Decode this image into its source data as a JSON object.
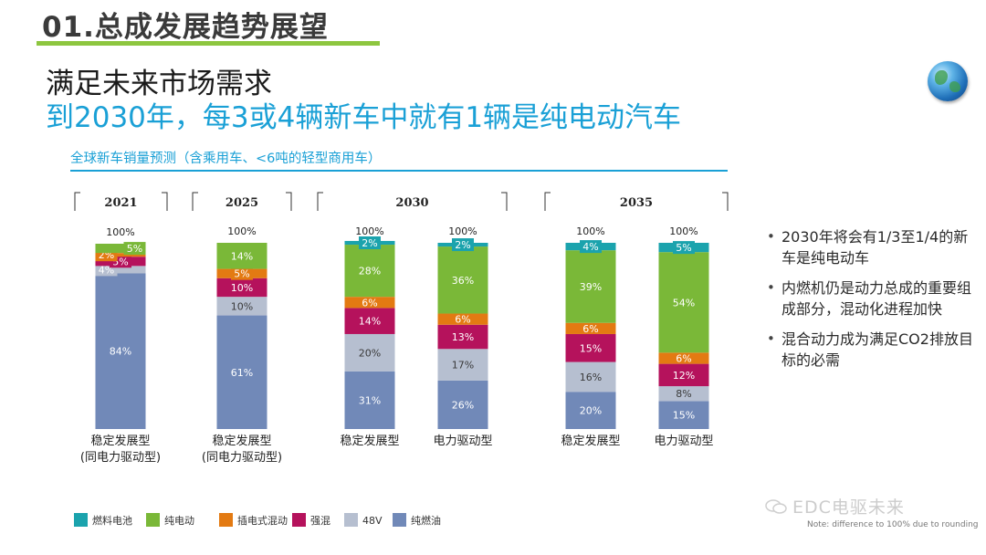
{
  "header": {
    "section_title": "01.总成发展趋势展望",
    "headline": "满足未来市场需求",
    "subheadline": "到2030年，每3或4辆新车中就有1辆是纯电动汽车",
    "globe_icon": "globe-icon"
  },
  "chart_title": "全球新车销量预测（含乘用车、<6吨的轻型商用车）",
  "chart_data": {
    "type": "bar",
    "title": "全球新车销量预测（含乘用车、<6吨的轻型商用车）",
    "stacking": "stacked-100",
    "year_groups": [
      "2021",
      "2025",
      "2030",
      "2035"
    ],
    "categories": [
      {
        "year": "2021",
        "label": "稳定发展型\n(同电力驱动型)",
        "total_label": "100%"
      },
      {
        "year": "2025",
        "label": "稳定发展型\n(同电力驱动型)",
        "total_label": "100%"
      },
      {
        "year": "2030",
        "label": "稳定发展型",
        "total_label": "100%"
      },
      {
        "year": "2030",
        "label": "电力驱动型",
        "total_label": "100%"
      },
      {
        "year": "2035",
        "label": "稳定发展型",
        "total_label": "100%"
      },
      {
        "year": "2035",
        "label": "电力驱动型",
        "total_label": "100%"
      }
    ],
    "series": [
      {
        "name": "纯燃油",
        "color": "#7189b8",
        "values": [
          84,
          61,
          31,
          26,
          20,
          15
        ]
      },
      {
        "name": "48V",
        "color": "#b6bfd0",
        "values": [
          4,
          10,
          20,
          17,
          16,
          8
        ]
      },
      {
        "name": "强混",
        "color": "#b5125c",
        "values": [
          5,
          10,
          14,
          13,
          15,
          12
        ]
      },
      {
        "name": "插电式混动",
        "color": "#e37a12",
        "values": [
          2,
          5,
          6,
          6,
          6,
          6
        ]
      },
      {
        "name": "纯电动",
        "color": "#7ab838",
        "values": [
          5,
          14,
          28,
          36,
          39,
          54
        ]
      },
      {
        "name": "燃料电池",
        "color": "#1ba3ad",
        "values": [
          0,
          0,
          2,
          2,
          4,
          5
        ]
      }
    ],
    "legend_order": [
      "燃料电池",
      "纯电动",
      "插电式混动",
      "强混",
      "48V",
      "纯燃油"
    ],
    "legend_position": "bottom-left",
    "note": "Note: difference to 100% due to rounding"
  },
  "bullets": [
    "2030年将会有1/3至1/4的新车是纯电动车",
    "内燃机仍是动力总成的重要组成部分，混动化进程加快",
    "混合动力成为满足CO2排放目标的必需"
  ],
  "watermark": "EDC电驱未来",
  "watermark_icon": "wechat-icon"
}
